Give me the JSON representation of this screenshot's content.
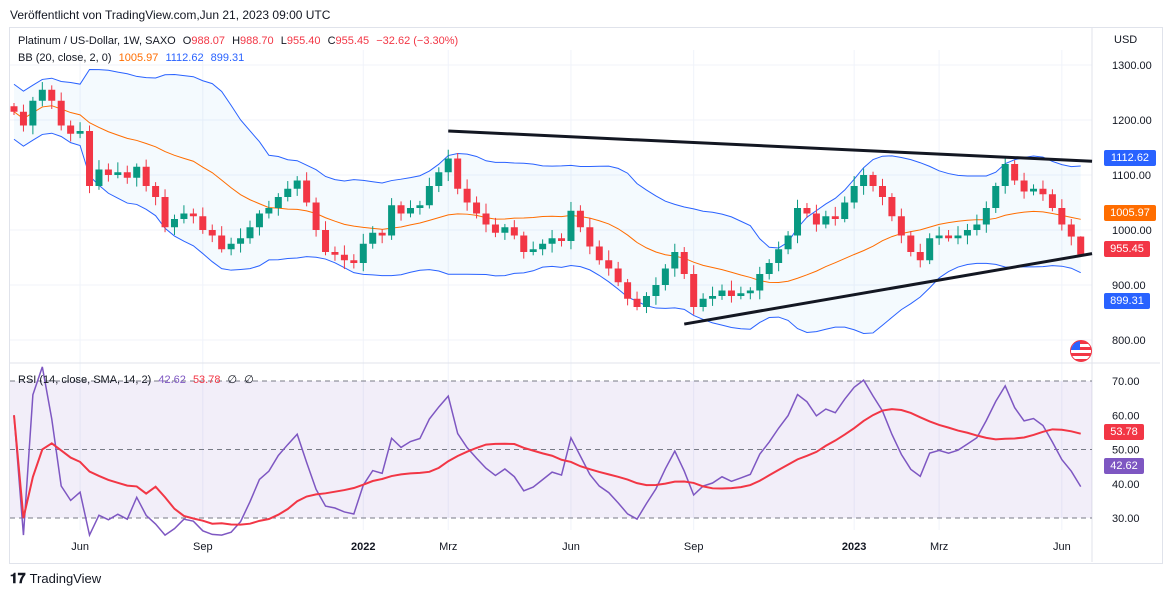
{
  "published": "Veröffentlicht von TradingView.com,Jun 21, 2023 09:00 UTC",
  "symbol": {
    "title": "Platinum / US-Dollar, 1W, SAXO",
    "o_label": "O",
    "o": "988.07",
    "h_label": "H",
    "h": "988.70",
    "l_label": "L",
    "l": "955.40",
    "c_label": "C",
    "c": "955.45",
    "change": "−32.62 (−3.30%)"
  },
  "bb": {
    "label": "BB (20, close, 2, 0)",
    "basis": "1005.97",
    "upper": "1112.62",
    "lower": "899.31"
  },
  "rsi": {
    "label": "RSI (14, close, SMA, 14, 2)",
    "value": "42.62",
    "sma": "53.78",
    "extra1": "∅",
    "extra2": "∅"
  },
  "footer": {
    "brand": "TradingView"
  },
  "colors": {
    "up": "#089981",
    "down": "#f23645",
    "bb_basis": "#ff6d00",
    "bb_band": "#2962ff",
    "rsi": "#7e57c2",
    "rsi_sma": "#f23645"
  },
  "chart_data": {
    "type": "candlestick",
    "currency": "USD",
    "price_ticks": [
      "1300.00",
      "1200.00",
      "1100.00",
      "1000.00",
      "900.00",
      "800.00"
    ],
    "price_tick_values": [
      1300,
      1200,
      1100,
      1000,
      900,
      800
    ],
    "ylim": [
      770,
      1340
    ],
    "rsi_ticks": [
      "70.00",
      "60.00",
      "50.00",
      "40.00",
      "30.00"
    ],
    "rsi_tick_values": [
      70,
      60,
      50,
      40,
      30
    ],
    "rsi_ylim": [
      25,
      75
    ],
    "x_ticks": [
      {
        "label": "Jun",
        "week": 7
      },
      {
        "label": "Sep",
        "week": 20
      },
      {
        "label": "2022",
        "week": 37
      },
      {
        "label": "Mrz",
        "week": 46
      },
      {
        "label": "Jun",
        "week": 59
      },
      {
        "label": "Sep",
        "week": 72
      },
      {
        "label": "2023",
        "week": 89
      },
      {
        "label": "Mrz",
        "week": 98
      },
      {
        "label": "Jun",
        "week": 111
      }
    ],
    "closes": [
      1215,
      1190,
      1235,
      1255,
      1235,
      1190,
      1175,
      1180,
      1080,
      1110,
      1100,
      1105,
      1095,
      1115,
      1080,
      1060,
      1005,
      1020,
      1030,
      1025,
      1000,
      990,
      965,
      975,
      985,
      1005,
      1030,
      1040,
      1060,
      1075,
      1090,
      1050,
      1000,
      960,
      955,
      945,
      940,
      975,
      995,
      990,
      1045,
      1030,
      1040,
      1045,
      1080,
      1105,
      1130,
      1075,
      1050,
      1030,
      1010,
      995,
      1005,
      990,
      960,
      965,
      975,
      985,
      980,
      1035,
      1005,
      970,
      945,
      930,
      905,
      875,
      860,
      880,
      900,
      930,
      960,
      920,
      860,
      875,
      880,
      890,
      880,
      885,
      890,
      920,
      940,
      965,
      990,
      1040,
      1030,
      1010,
      1025,
      1020,
      1050,
      1080,
      1100,
      1080,
      1060,
      1025,
      990,
      960,
      945,
      985,
      990,
      985,
      990,
      1000,
      1010,
      1040,
      1080,
      1120,
      1090,
      1070,
      1075,
      1065,
      1040,
      1010,
      988.07,
      955.45
    ],
    "last": {
      "open": 988.07,
      "high": 988.7,
      "low": 955.4,
      "close": 955.45
    },
    "trendlines": [
      {
        "from": [
          46,
          1180
        ],
        "to": [
          114.2,
          1125
        ]
      },
      {
        "from": [
          71,
          829
        ],
        "to": [
          114.2,
          957
        ]
      }
    ]
  }
}
